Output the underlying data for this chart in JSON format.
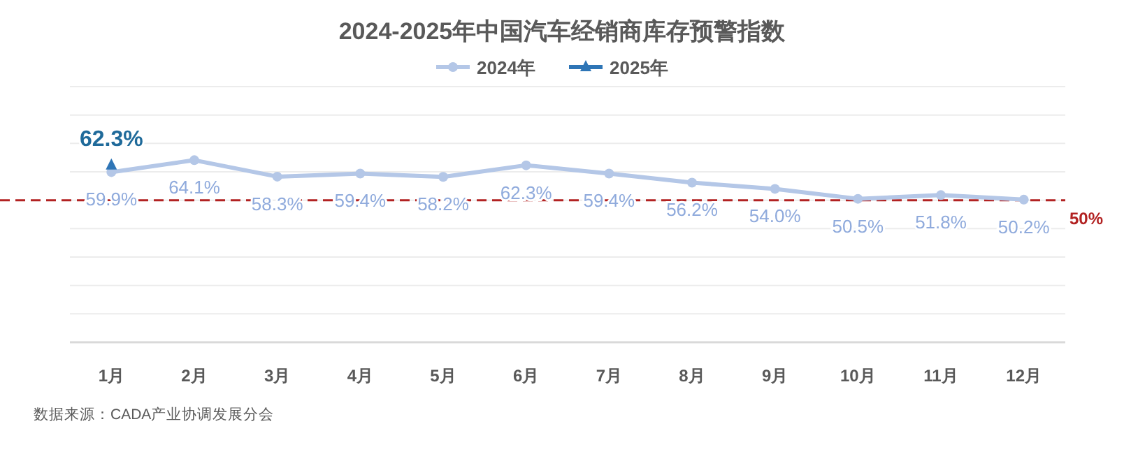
{
  "chart_data": {
    "type": "line",
    "title": "2024-2025年中国汽车经销商库存预警指数",
    "categories": [
      "1月",
      "2月",
      "3月",
      "4月",
      "5月",
      "6月",
      "7月",
      "8月",
      "9月",
      "10月",
      "11月",
      "12月"
    ],
    "series": [
      {
        "name": "2024年",
        "color": "#b4c7e7",
        "marker": "circle",
        "values": [
          59.9,
          64.1,
          58.3,
          59.4,
          58.2,
          62.3,
          59.4,
          56.2,
          54.0,
          50.5,
          51.8,
          50.2
        ],
        "value_labels": [
          "59.9%",
          "64.1%",
          "58.3%",
          "59.4%",
          "58.2%",
          "62.3%",
          "59.4%",
          "56.2%",
          "54.0%",
          "50.5%",
          "51.8%",
          "50.2%"
        ]
      },
      {
        "name": "2025年",
        "color": "#2e75b6",
        "marker": "triangle",
        "values": [
          62.3,
          null,
          null,
          null,
          null,
          null,
          null,
          null,
          null,
          null,
          null,
          null
        ],
        "value_labels": [
          "62.3%",
          null,
          null,
          null,
          null,
          null,
          null,
          null,
          null,
          null,
          null,
          null
        ]
      }
    ],
    "ylim": [
      0,
      90
    ],
    "yticks": [
      {
        "value": 0,
        "label": null
      },
      {
        "value": 10,
        "label": null
      },
      {
        "value": 20,
        "label": null
      },
      {
        "value": 30,
        "label": null
      },
      {
        "value": 40,
        "label": null
      },
      {
        "value": 50,
        "label": null
      },
      {
        "value": 60,
        "label": null
      },
      {
        "value": 70,
        "label": null
      },
      {
        "value": 80,
        "label": null
      },
      {
        "value": 90,
        "label": null
      }
    ],
    "grid": "y",
    "legend": "top",
    "tick_labels": "x",
    "ref_lines": [
      {
        "axis": "y",
        "value": 50,
        "label": "50%",
        "color": "#b22222",
        "line_style": "dashed"
      }
    ],
    "annotations": [
      "数据来源：CADA产业协调发展分会"
    ]
  }
}
